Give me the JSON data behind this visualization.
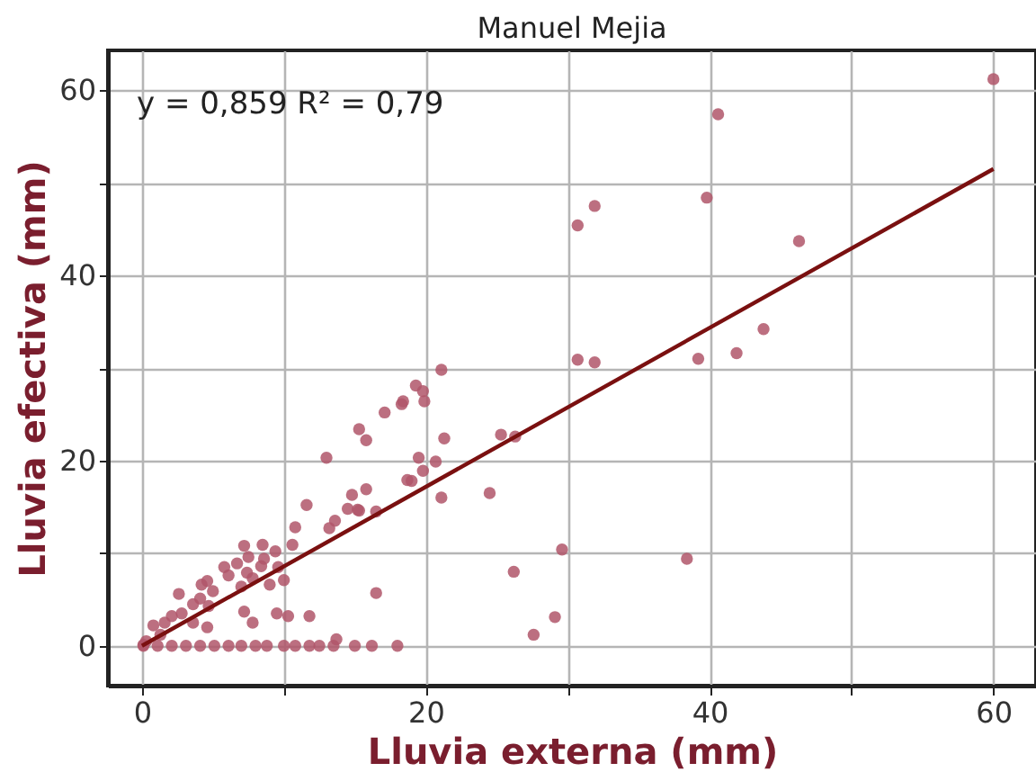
{
  "chart_data": {
    "type": "scatter",
    "title": "Manuel Mejia",
    "xlabel": "Lluvia externa (mm)",
    "ylabel": "Lluvia efectiva (mm)",
    "annotations": [
      "y = 0,859    R² = 0,79"
    ],
    "xlim": [
      -2.4,
      63
    ],
    "ylim": [
      -4.3,
      64.3
    ],
    "xticks": [
      0,
      {
        "value": 10,
        "label": null
      },
      20,
      {
        "value": 30,
        "label": null
      },
      40,
      {
        "value": 50,
        "label": null
      },
      60
    ],
    "yticks": [
      0,
      {
        "value": 10,
        "label": null
      },
      20,
      {
        "value": 30,
        "label": null
      },
      40,
      {
        "value": 50,
        "label": null
      },
      60
    ],
    "grid": true,
    "series": [
      {
        "marker": "circle",
        "color": "#b0566a",
        "x": [
          60.0,
          40.6,
          39.8,
          31.9,
          30.7,
          46.3,
          43.8,
          41.9,
          39.2,
          30.7,
          31.9,
          21.1,
          19.3,
          19.8,
          19.9,
          21.3,
          25.3,
          26.3,
          19.5,
          20.7,
          19.8,
          19.0,
          21.1,
          24.5,
          29.6,
          26.2,
          38.4,
          29.1,
          27.6,
          17.1,
          18.3,
          18.4,
          15.3,
          15.8,
          13.0,
          18.7,
          15.8,
          14.8,
          11.6,
          14.5,
          15.2,
          16.5,
          15.3,
          13.6,
          13.2,
          10.8,
          16.5,
          7.2,
          8.5,
          9.4,
          10.6,
          7.5,
          8.6,
          5.8,
          6.7,
          8.4,
          9.6,
          6.1,
          7.4,
          7.8,
          9.0,
          10.0,
          4.6,
          4.2,
          5.0,
          7.0,
          4.1,
          2.6,
          3.6,
          4.7,
          2.8,
          2.1,
          1.6,
          0.8,
          1.3,
          0.3,
          0.1,
          7.2,
          7.8,
          9.5,
          10.3,
          11.8,
          3.6,
          4.6,
          0.1,
          1.1,
          2.1,
          3.1,
          4.1,
          5.1,
          6.1,
          7.0,
          8.0,
          8.8,
          10.0,
          10.8,
          11.8,
          12.5,
          13.5,
          15.0,
          16.2,
          18.0,
          13.7
        ],
        "values": [
          61.2,
          57.4,
          48.4,
          47.5,
          45.4,
          43.7,
          34.2,
          31.6,
          31.0,
          30.9,
          30.6,
          29.8,
          28.1,
          27.5,
          26.4,
          22.4,
          22.8,
          22.6,
          20.3,
          19.9,
          18.9,
          17.8,
          16.0,
          16.5,
          10.4,
          8.0,
          9.4,
          3.1,
          1.2,
          25.2,
          26.1,
          26.4,
          23.4,
          22.2,
          20.3,
          17.9,
          16.9,
          16.3,
          15.2,
          14.8,
          14.7,
          14.5,
          14.6,
          13.5,
          12.7,
          12.8,
          5.7,
          10.8,
          10.9,
          10.2,
          10.9,
          9.6,
          9.4,
          8.5,
          8.9,
          8.6,
          8.5,
          7.6,
          7.9,
          7.3,
          6.6,
          7.1,
          7.0,
          6.6,
          5.9,
          6.4,
          5.1,
          5.6,
          4.5,
          4.3,
          3.5,
          3.2,
          2.5,
          2.2,
          1.2,
          0.5,
          0.1,
          3.7,
          2.5,
          3.5,
          3.2,
          3.2,
          2.5,
          2.0,
          0,
          0,
          0,
          0,
          0,
          0,
          0,
          0,
          0,
          0,
          0,
          0,
          0,
          0,
          0,
          0,
          0,
          0,
          0.7
        ]
      },
      {
        "type": "line",
        "color": "#7a1010",
        "x": [
          0,
          60
        ],
        "values": [
          0,
          51.5
        ]
      }
    ]
  }
}
